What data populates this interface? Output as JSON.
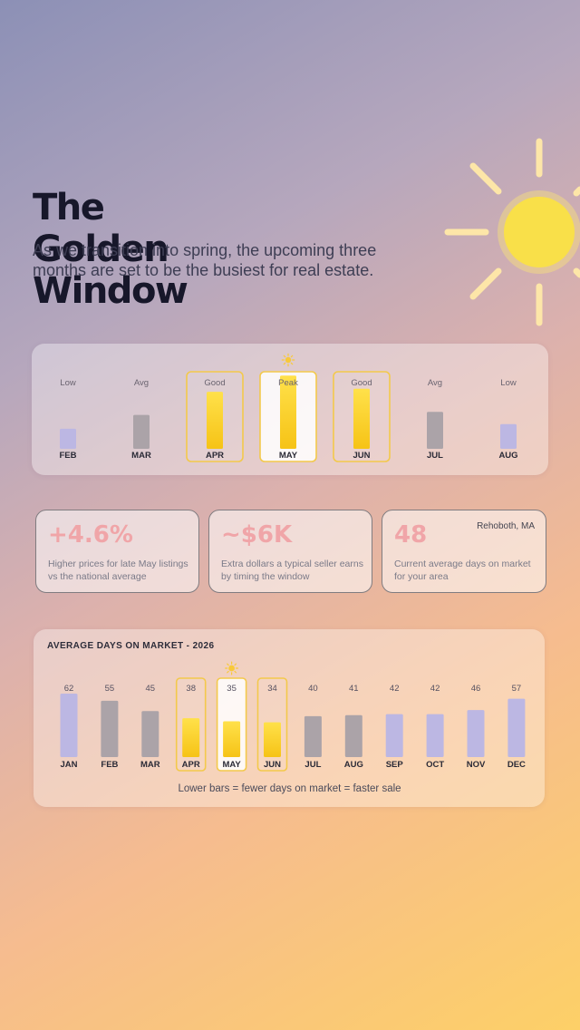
{
  "header": {
    "title": "The Golden Window",
    "subtitle": "As we transition into spring, the upcoming three months are set to be the busiest for real estate."
  },
  "colors": {
    "highlight_bar": "#f6c316",
    "highlight_border": "#f3c94b",
    "neutral_bar": "#aba3a8",
    "low_bar": "#bcb7e3",
    "stat_value": "#f0a5a8"
  },
  "season_chart": {
    "months": [
      {
        "label": "FEB",
        "rating": "Low",
        "level": 0.26,
        "style": "low",
        "highlight": false,
        "peak": false
      },
      {
        "label": "MAR",
        "rating": "Avg",
        "level": 0.44,
        "style": "neutral",
        "highlight": false,
        "peak": false
      },
      {
        "label": "APR",
        "rating": "Good",
        "level": 0.74,
        "style": "gold",
        "highlight": true,
        "peak": false
      },
      {
        "label": "MAY",
        "rating": "Peak",
        "level": 0.95,
        "style": "gold",
        "highlight": true,
        "peak": true
      },
      {
        "label": "JUN",
        "rating": "Good",
        "level": 0.78,
        "style": "gold",
        "highlight": true,
        "peak": false
      },
      {
        "label": "JUL",
        "rating": "Avg",
        "level": 0.48,
        "style": "neutral",
        "highlight": false,
        "peak": false
      },
      {
        "label": "AUG",
        "rating": "Low",
        "level": 0.32,
        "style": "low",
        "highlight": false,
        "peak": false
      }
    ]
  },
  "stats": [
    {
      "value": "+4.6%",
      "description": "Higher prices for late May listings vs the national average",
      "location": ""
    },
    {
      "value": "~$6K",
      "description": "Extra dollars a typical seller earns by timing the window",
      "location": ""
    },
    {
      "value": "48",
      "description": "Current average days on market for your area",
      "location": "Rehoboth, MA"
    }
  ],
  "chart_data": {
    "type": "bar",
    "title": "AVERAGE DAYS ON MARKET - 2026",
    "categories": [
      "JAN",
      "FEB",
      "MAR",
      "APR",
      "MAY",
      "JUN",
      "JUL",
      "AUG",
      "SEP",
      "OCT",
      "NOV",
      "DEC"
    ],
    "values": [
      62,
      55,
      45,
      38,
      35,
      34,
      40,
      41,
      42,
      42,
      46,
      57
    ],
    "bar_styles": [
      "low",
      "neutral",
      "neutral",
      "gold",
      "gold",
      "gold",
      "neutral",
      "neutral",
      "low",
      "low",
      "low",
      "low"
    ],
    "highlighted": [
      "APR",
      "MAY",
      "JUN"
    ],
    "peak": "MAY",
    "ylim": [
      0,
      62
    ],
    "grid": false,
    "legend": "none",
    "footnote": "Lower bars = fewer days on market = faster sale"
  }
}
